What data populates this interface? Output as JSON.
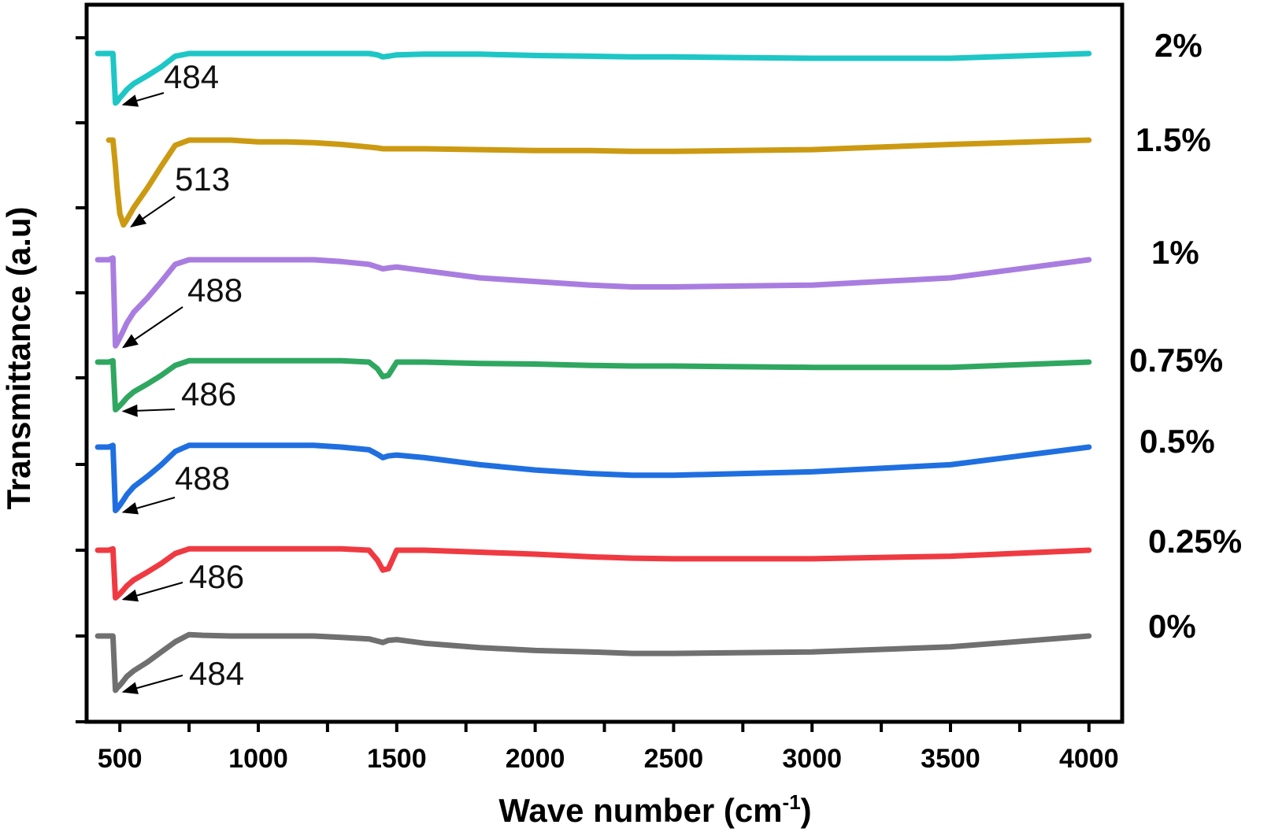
{
  "chart_data": {
    "type": "line",
    "xlabel": "Wave number (cm",
    "xlabel_sup": "-1",
    "xlabel_close": ")",
    "ylabel": "Transmittance (a.u)",
    "xlim": [
      380,
      4120
    ],
    "x_ticks": [
      "500",
      "1000",
      "1500",
      "2000",
      "2500",
      "3000",
      "3500",
      "4000"
    ],
    "x": [
      420,
      440,
      460,
      475,
      484,
      490,
      500,
      513,
      525,
      550,
      600,
      650,
      700,
      750,
      800,
      900,
      1000,
      1100,
      1200,
      1300,
      1400,
      1430,
      1450,
      1470,
      1500,
      1600,
      1800,
      2000,
      2200,
      2350,
      2500,
      3000,
      3500,
      4000
    ],
    "series": [
      {
        "name": "0%",
        "color": "#707070",
        "peak_label": "484",
        "values": [
          0.0,
          0.0,
          0.0,
          0.0,
          -0.75,
          -0.72,
          -0.68,
          -0.62,
          -0.56,
          -0.48,
          -0.36,
          -0.22,
          -0.08,
          0.02,
          0.01,
          0.0,
          0.0,
          0.0,
          0.0,
          -0.02,
          -0.04,
          -0.07,
          -0.09,
          -0.06,
          -0.05,
          -0.1,
          -0.16,
          -0.2,
          -0.22,
          -0.24,
          -0.24,
          -0.22,
          -0.15,
          0.0
        ]
      },
      {
        "name": "0.25%",
        "color": "#ef3a42",
        "peak_label": "486",
        "values": [
          0.0,
          0.0,
          0.0,
          0.02,
          -0.72,
          -0.7,
          -0.66,
          -0.6,
          -0.54,
          -0.45,
          -0.33,
          -0.2,
          -0.05,
          0.02,
          0.02,
          0.02,
          0.02,
          0.02,
          0.02,
          0.02,
          0.0,
          -0.15,
          -0.3,
          -0.28,
          0.0,
          0.0,
          -0.03,
          -0.06,
          -0.1,
          -0.12,
          -0.13,
          -0.13,
          -0.09,
          0.0
        ]
      },
      {
        "name": "0.5%",
        "color": "#1f6fe0",
        "peak_label": "488",
        "values": [
          0.0,
          0.0,
          0.0,
          0.02,
          -0.72,
          -0.7,
          -0.66,
          -0.6,
          -0.54,
          -0.45,
          -0.33,
          -0.2,
          -0.05,
          0.02,
          0.02,
          0.02,
          0.02,
          0.02,
          0.02,
          0.0,
          -0.03,
          -0.08,
          -0.12,
          -0.1,
          -0.09,
          -0.12,
          -0.2,
          -0.26,
          -0.3,
          -0.32,
          -0.32,
          -0.28,
          -0.2,
          0.0
        ]
      },
      {
        "name": "0.75%",
        "color": "#2fa760",
        "peak_label": "486",
        "values": [
          0.0,
          0.0,
          0.0,
          0.02,
          -0.72,
          -0.7,
          -0.66,
          -0.6,
          -0.54,
          -0.45,
          -0.33,
          -0.2,
          -0.05,
          0.02,
          0.02,
          0.02,
          0.02,
          0.02,
          0.02,
          0.02,
          0.0,
          -0.1,
          -0.22,
          -0.2,
          0.0,
          0.0,
          -0.02,
          -0.03,
          -0.05,
          -0.06,
          -0.06,
          -0.08,
          -0.08,
          0.0
        ]
      },
      {
        "name": "1%",
        "color": "#a97de0",
        "peak_label": "488",
        "values": [
          0.0,
          0.0,
          0.0,
          0.02,
          -0.95,
          -0.92,
          -0.86,
          -0.78,
          -0.7,
          -0.58,
          -0.42,
          -0.24,
          -0.05,
          0.0,
          0.0,
          0.0,
          0.0,
          0.0,
          0.0,
          -0.02,
          -0.05,
          -0.08,
          -0.1,
          -0.09,
          -0.08,
          -0.12,
          -0.2,
          -0.24,
          -0.28,
          -0.3,
          -0.3,
          -0.28,
          -0.2,
          0.0
        ]
      },
      {
        "name": "1.5%",
        "color": "#cc9a12",
        "peak_label": "513",
        "values": [
          null,
          null,
          0.0,
          0.0,
          -0.3,
          -0.55,
          -0.85,
          -0.98,
          -0.92,
          -0.78,
          -0.55,
          -0.3,
          -0.06,
          0.0,
          0.0,
          0.0,
          -0.02,
          -0.02,
          -0.03,
          -0.05,
          -0.08,
          -0.09,
          -0.1,
          -0.1,
          -0.1,
          -0.1,
          -0.11,
          -0.12,
          -0.12,
          -0.13,
          -0.13,
          -0.11,
          -0.05,
          0.0
        ]
      },
      {
        "name": "2%",
        "color": "#1ec6c6",
        "peak_label": "484",
        "values": [
          0.0,
          0.0,
          0.0,
          0.0,
          -0.74,
          -0.72,
          -0.66,
          -0.6,
          -0.54,
          -0.45,
          -0.33,
          -0.2,
          -0.04,
          0.0,
          0.0,
          0.0,
          0.0,
          0.0,
          0.0,
          0.0,
          0.0,
          -0.02,
          -0.05,
          -0.04,
          -0.02,
          -0.01,
          -0.01,
          -0.03,
          -0.04,
          -0.05,
          -0.05,
          -0.07,
          -0.07,
          0.0
        ]
      }
    ]
  }
}
